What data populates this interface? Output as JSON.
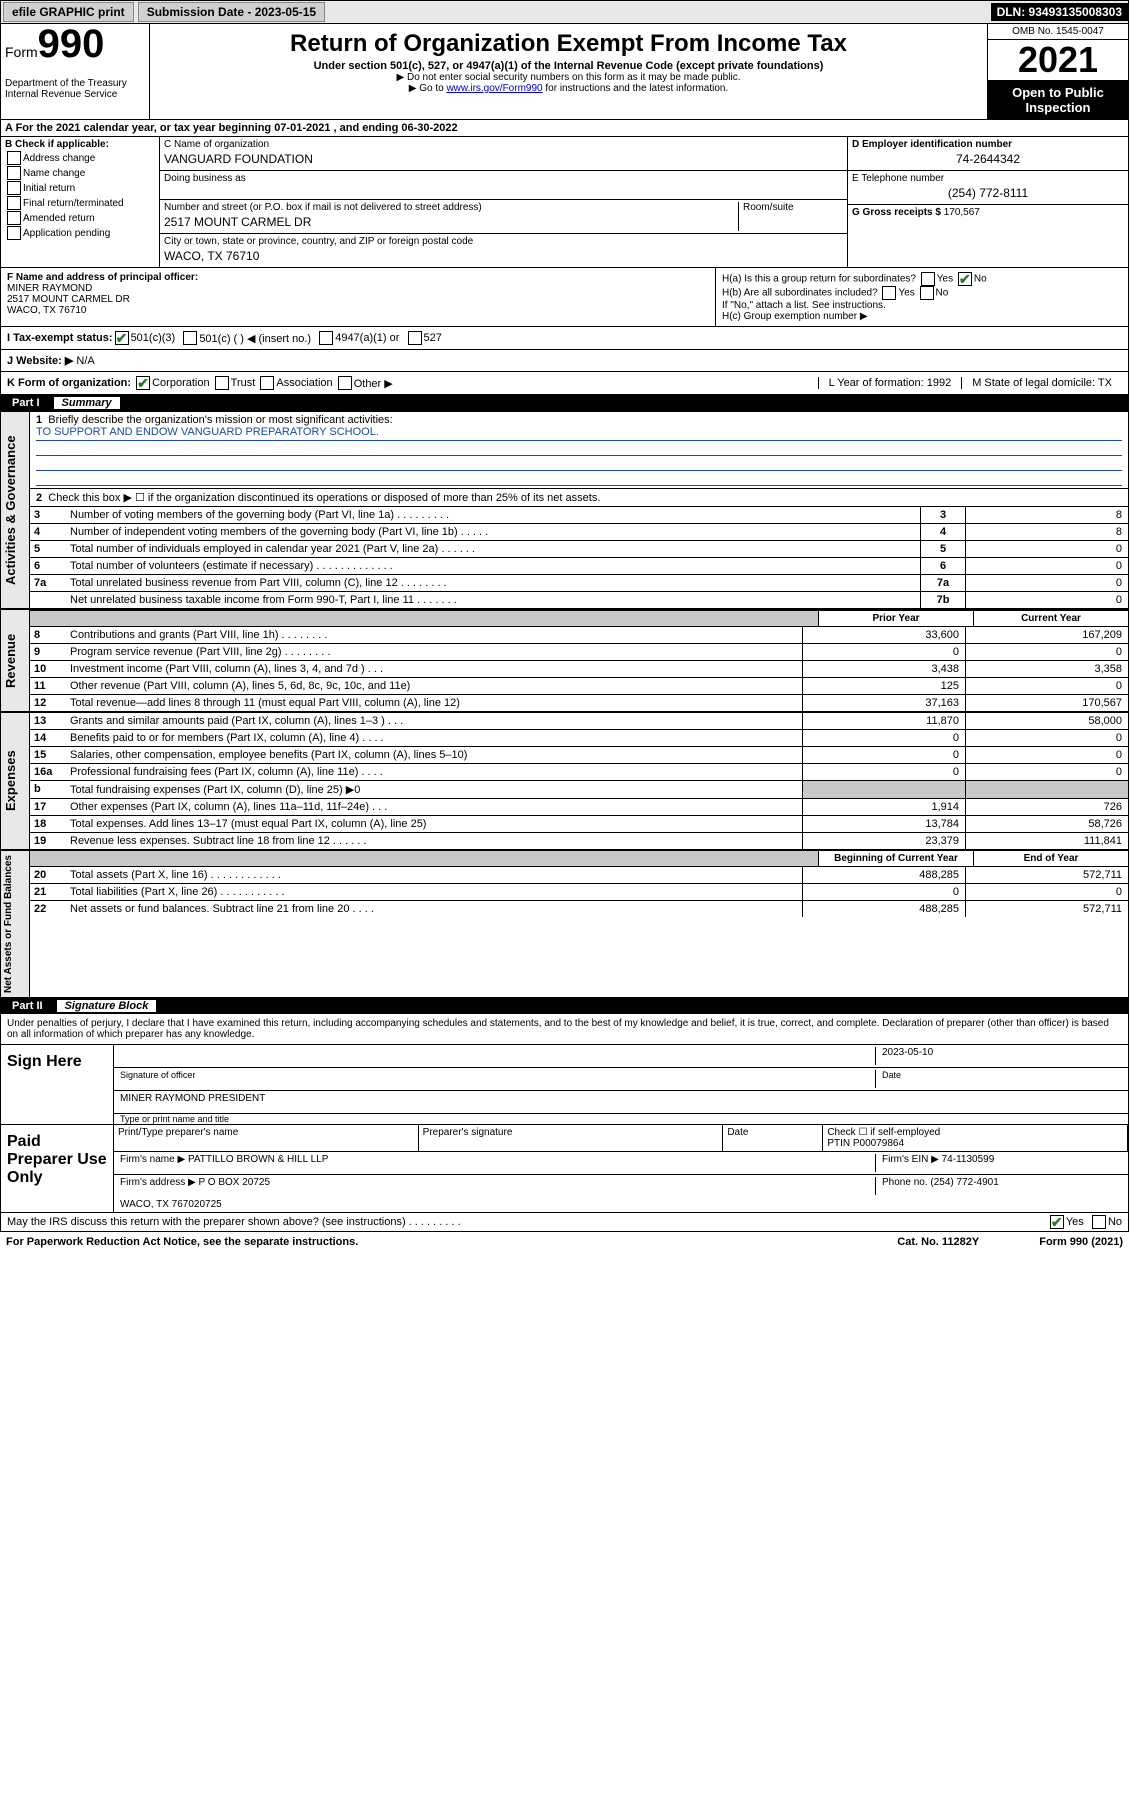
{
  "topbar": {
    "efile": "efile GRAPHIC print",
    "sub_label": "Submission Date - 2023-05-15",
    "dln": "DLN: 93493135008303"
  },
  "header": {
    "form_label": "Form",
    "form_num": "990",
    "dept": "Department of the Treasury",
    "irs": "Internal Revenue Service",
    "title": "Return of Organization Exempt From Income Tax",
    "subtitle": "Under section 501(c), 527, or 4947(a)(1) of the Internal Revenue Code (except private foundations)",
    "note1": "▶ Do not enter social security numbers on this form as it may be made public.",
    "note2_pre": "▶ Go to ",
    "note2_link": "www.irs.gov/Form990",
    "note2_post": " for instructions and the latest information.",
    "omb": "OMB No. 1545-0047",
    "year": "2021",
    "open": "Open to Public Inspection"
  },
  "lineA": "A For the 2021 calendar year, or tax year beginning 07-01-2021    , and ending 06-30-2022",
  "colB": {
    "head": "B Check if applicable:",
    "items": [
      "Address change",
      "Name change",
      "Initial return",
      "Final return/terminated",
      "Amended return",
      "Application pending"
    ]
  },
  "colC": {
    "name_label": "C Name of organization",
    "name": "VANGUARD FOUNDATION",
    "dba_label": "Doing business as",
    "street_label": "Number and street (or P.O. box if mail is not delivered to street address)",
    "room_label": "Room/suite",
    "street": "2517 MOUNT CARMEL DR",
    "city_label": "City or town, state or province, country, and ZIP or foreign postal code",
    "city": "WACO, TX  76710"
  },
  "colD": {
    "ein_label": "D Employer identification number",
    "ein": "74-2644342",
    "tel_label": "E Telephone number",
    "tel": "(254) 772-8111",
    "gross_label": "G Gross receipts $",
    "gross": "170,567"
  },
  "rowF": {
    "label": "F Name and address of principal officer:",
    "name": "MINER RAYMOND",
    "addr1": "2517 MOUNT CARMEL DR",
    "addr2": "WACO, TX  76710"
  },
  "rowH": {
    "ha": "H(a)  Is this a group return for subordinates?",
    "hb": "H(b)  Are all subordinates included?",
    "hb_note": "If \"No,\" attach a list. See instructions.",
    "hc": "H(c)  Group exemption number ▶",
    "yes": "Yes",
    "no": "No"
  },
  "rowI": {
    "label": "I    Tax-exempt status:",
    "o1": "501(c)(3)",
    "o2": "501(c) (  ) ◀ (insert no.)",
    "o3": "4947(a)(1) or",
    "o4": "527"
  },
  "rowJ": {
    "label": "J   Website: ▶",
    "val": "N/A"
  },
  "rowK": {
    "label": "K Form of organization:",
    "o1": "Corporation",
    "o2": "Trust",
    "o3": "Association",
    "o4": "Other ▶",
    "L": "L Year of formation: 1992",
    "M": "M State of legal domicile: TX"
  },
  "part1": {
    "label": "Part I",
    "title": "Summary"
  },
  "summary": {
    "line1_label": "Briefly describe the organization's mission or most significant activities:",
    "line1_text": "TO SUPPORT AND ENDOW VANGUARD PREPARATORY SCHOOL.",
    "line2": "Check this box ▶ ☐  if the organization discontinued its operations or disposed of more than 25% of its net assets.",
    "rows_gov": [
      {
        "n": "3",
        "lbl": "Number of voting members of the governing body (Part VI, line 1a)   .    .    .    .    .    .    .    .    .",
        "box": "3",
        "v": "8"
      },
      {
        "n": "4",
        "lbl": "Number of independent voting members of the governing body (Part VI, line 1b)  .    .    .    .    .",
        "box": "4",
        "v": "8"
      },
      {
        "n": "5",
        "lbl": "Total number of individuals employed in calendar year 2021 (Part V, line 2a)   .    .    .    .    .    .",
        "box": "5",
        "v": "0"
      },
      {
        "n": "6",
        "lbl": "Total number of volunteers (estimate if necessary)    .    .    .    .    .    .    .    .    .    .    .    .    .",
        "box": "6",
        "v": "0"
      },
      {
        "n": "7a",
        "lbl": "Total unrelated business revenue from Part VIII, column (C), line 12   .    .    .    .    .    .    .    .",
        "box": "7a",
        "v": "0"
      },
      {
        "n": "",
        "lbl": "Net unrelated business taxable income from Form 990-T, Part I, line 11    .    .    .    .    .    .    .",
        "box": "7b",
        "v": "0"
      }
    ],
    "prior_label": "Prior Year",
    "current_label": "Current Year",
    "rows_rev": [
      {
        "n": "8",
        "lbl": "Contributions and grants (Part VIII, line 1h)    .    .    .    .    .    .    .    .",
        "p": "33,600",
        "c": "167,209"
      },
      {
        "n": "9",
        "lbl": "Program service revenue (Part VIII, line 2g)   .    .    .    .    .    .    .    .",
        "p": "0",
        "c": "0"
      },
      {
        "n": "10",
        "lbl": "Investment income (Part VIII, column (A), lines 3, 4, and 7d )    .    .    .",
        "p": "3,438",
        "c": "3,358"
      },
      {
        "n": "11",
        "lbl": "Other revenue (Part VIII, column (A), lines 5, 6d, 8c, 9c, 10c, and 11e)",
        "p": "125",
        "c": "0"
      },
      {
        "n": "12",
        "lbl": "Total revenue—add lines 8 through 11 (must equal Part VIII, column (A), line 12)",
        "p": "37,163",
        "c": "170,567"
      }
    ],
    "rows_exp": [
      {
        "n": "13",
        "lbl": "Grants and similar amounts paid (Part IX, column (A), lines 1–3 )   .    .    .",
        "p": "11,870",
        "c": "58,000"
      },
      {
        "n": "14",
        "lbl": "Benefits paid to or for members (Part IX, column (A), line 4)   .    .    .    .",
        "p": "0",
        "c": "0"
      },
      {
        "n": "15",
        "lbl": "Salaries, other compensation, employee benefits (Part IX, column (A), lines 5–10)",
        "p": "0",
        "c": "0"
      },
      {
        "n": "16a",
        "lbl": "Professional fundraising fees (Part IX, column (A), line 11e)   .    .    .    .",
        "p": "0",
        "c": "0"
      },
      {
        "n": "b",
        "lbl": "Total fundraising expenses (Part IX, column (D), line 25) ▶0",
        "p": "",
        "c": "",
        "grey": true
      },
      {
        "n": "17",
        "lbl": "Other expenses (Part IX, column (A), lines 11a–11d, 11f–24e)   .    .    .",
        "p": "1,914",
        "c": "726"
      },
      {
        "n": "18",
        "lbl": "Total expenses. Add lines 13–17 (must equal Part IX, column (A), line 25)",
        "p": "13,784",
        "c": "58,726"
      },
      {
        "n": "19",
        "lbl": "Revenue less expenses. Subtract line 18 from line 12   .    .    .    .    .    .",
        "p": "23,379",
        "c": "111,841"
      }
    ],
    "bal_begin": "Beginning of Current Year",
    "bal_end": "End of Year",
    "rows_bal": [
      {
        "n": "20",
        "lbl": "Total assets (Part X, line 16)   .    .    .    .    .    .    .    .    .    .    .    .",
        "p": "488,285",
        "c": "572,711"
      },
      {
        "n": "21",
        "lbl": "Total liabilities (Part X, line 26)   .    .    .    .    .    .    .    .    .    .    .",
        "p": "0",
        "c": "0"
      },
      {
        "n": "22",
        "lbl": "Net assets or fund balances. Subtract line 21 from line 20   .    .    .    .",
        "p": "488,285",
        "c": "572,711"
      }
    ],
    "side_gov": "Activities & Governance",
    "side_rev": "Revenue",
    "side_exp": "Expenses",
    "side_bal": "Net Assets or Fund Balances"
  },
  "part2": {
    "label": "Part II",
    "title": "Signature Block",
    "text": "Under penalties of perjury, I declare that I have examined this return, including accompanying schedules and statements, and to the best of my knowledge and belief, it is true, correct, and complete. Declaration of preparer (other than officer) is based on all information of which preparer has any knowledge.",
    "sign_here": "Sign Here",
    "sig_officer": "Signature of officer",
    "date": "Date",
    "date_val": "2023-05-10",
    "name_title": "MINER RAYMOND  PRESIDENT",
    "type_name": "Type or print name and title",
    "paid": "Paid Preparer Use Only",
    "pt_name": "Print/Type preparer's name",
    "pt_sig": "Preparer's signature",
    "pt_date": "Date",
    "pt_check": "Check ☐ if self-employed",
    "ptin_label": "PTIN",
    "ptin": "P00079864",
    "firm_name_label": "Firm's name     ▶",
    "firm_name": "PATTILLO BROWN & HILL LLP",
    "firm_ein_label": "Firm's EIN ▶",
    "firm_ein": "74-1130599",
    "firm_addr_label": "Firm's address ▶",
    "firm_addr1": "P O BOX 20725",
    "firm_addr2": "WACO, TX  767020725",
    "phone_label": "Phone no.",
    "phone": "(254) 772-4901",
    "may_irs": "May the IRS discuss this return with the preparer shown above? (see instructions)    .    .    .    .    .    .    .    .    .",
    "yes": "Yes",
    "no": "No"
  },
  "footer": {
    "left": "For Paperwork Reduction Act Notice, see the separate instructions.",
    "mid": "Cat. No. 11282Y",
    "right": "Form 990 (2021)"
  }
}
